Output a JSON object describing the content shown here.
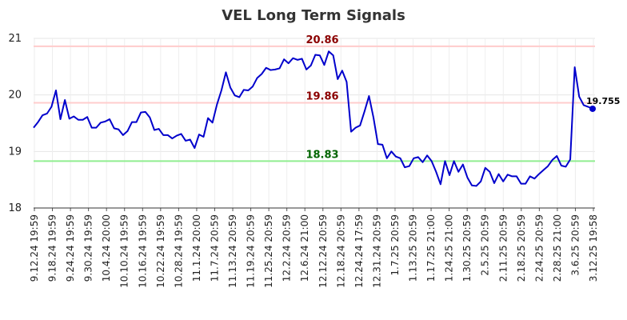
{
  "chart_data": {
    "type": "line",
    "title": "VEL Long Term Signals",
    "ylim": [
      18,
      21
    ],
    "yticks": [
      18,
      19,
      20,
      21
    ],
    "grid": true,
    "line_color": "#0000cc",
    "x_tick_labels": [
      "9.12.24 19:59",
      "9.18.24 19:59",
      "9.24.24 19:59",
      "9.30.24 19:59",
      "10.4.24 20:00",
      "10.10.24 19:59",
      "10.16.24 19:59",
      "10.22.24 19:59",
      "10.28.24 19:59",
      "11.1.24 20:00",
      "11.7.24 20:59",
      "11.13.24 20:59",
      "11.19.24 20:59",
      "11.25.24 20:59",
      "12.2.24 20:59",
      "12.6.24 21:00",
      "12.12.24 20:59",
      "12.18.24 20:59",
      "12.24.24 17:59",
      "12.31.24 20:59",
      "1.7.25 20:59",
      "1.13.25 20:59",
      "1.17.25 21:00",
      "1.24.25 21:00",
      "1.30.25 20:59",
      "2.5.25 20:59",
      "2.11.25 20:59",
      "2.18.25 20:59",
      "2.24.25 20:59",
      "2.28.25 21:00",
      "3.6.25 20:59",
      "3.12.25 19:58"
    ],
    "values": [
      19.42,
      19.52,
      19.64,
      19.67,
      19.79,
      20.08,
      19.57,
      19.91,
      19.58,
      19.62,
      19.56,
      19.56,
      19.61,
      19.42,
      19.42,
      19.51,
      19.53,
      19.57,
      19.41,
      19.39,
      19.29,
      19.36,
      19.52,
      19.52,
      19.69,
      19.7,
      19.6,
      19.38,
      19.4,
      19.29,
      19.29,
      19.23,
      19.28,
      19.31,
      19.19,
      19.21,
      19.06,
      19.3,
      19.26,
      19.59,
      19.51,
      19.83,
      20.08,
      20.4,
      20.13,
      19.99,
      19.96,
      20.09,
      20.08,
      20.15,
      20.3,
      20.37,
      20.48,
      20.44,
      20.45,
      20.47,
      20.63,
      20.56,
      20.65,
      20.62,
      20.64,
      20.45,
      20.52,
      20.71,
      20.7,
      20.53,
      20.77,
      20.7,
      20.28,
      20.43,
      20.23,
      19.35,
      19.42,
      19.46,
      19.71,
      19.98,
      19.6,
      19.13,
      19.12,
      18.88,
      19.0,
      18.91,
      18.88,
      18.72,
      18.74,
      18.88,
      18.9,
      18.81,
      18.93,
      18.83,
      18.64,
      18.42,
      18.83,
      18.58,
      18.83,
      18.64,
      18.77,
      18.54,
      18.4,
      18.39,
      18.47,
      18.71,
      18.64,
      18.44,
      18.6,
      18.47,
      18.59,
      18.56,
      18.56,
      18.43,
      18.43,
      18.56,
      18.52,
      18.6,
      18.67,
      18.74,
      18.85,
      18.92,
      18.75,
      18.73,
      18.86,
      20.49,
      19.97,
      19.82,
      19.79,
      19.755
    ],
    "hlines": [
      {
        "value": 20.86,
        "label": "20.86",
        "line_color": "#ffcccc",
        "label_color": "#8b0000"
      },
      {
        "value": 19.86,
        "label": "19.86",
        "line_color": "#ffcccc",
        "label_color": "#8b0000"
      },
      {
        "value": 18.83,
        "label": "18.83",
        "line_color": "#90ee90",
        "label_color": "#006400"
      }
    ],
    "last_value_label": "19.755"
  }
}
